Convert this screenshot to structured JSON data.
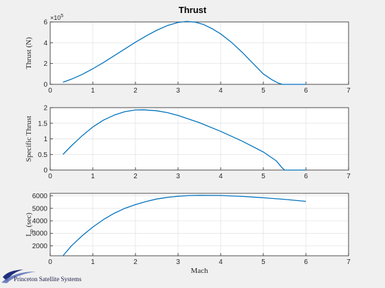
{
  "title": "Thrust",
  "logo": {
    "text": "Princeton Satellite Systems"
  },
  "chart_data": [
    {
      "type": "line",
      "xlabel": "",
      "ylabel": "Thrust (N)",
      "y_exponent": "×10",
      "y_exponent_power": "5",
      "xlim": [
        0,
        7
      ],
      "ylim": [
        0,
        6
      ],
      "xticks": [
        0,
        1,
        2,
        3,
        4,
        5,
        6,
        7
      ],
      "yticks": [
        0,
        2,
        4,
        6
      ],
      "grid": true,
      "color": "#0072bd",
      "x": [
        0.3,
        0.5,
        0.75,
        1.0,
        1.25,
        1.5,
        1.75,
        2.0,
        2.25,
        2.5,
        2.75,
        3.0,
        3.2,
        3.4,
        3.6,
        3.8,
        4.0,
        4.25,
        4.5,
        4.75,
        5.0,
        5.2,
        5.35,
        5.45,
        5.5,
        5.75,
        6.0
      ],
      "y": [
        0.2,
        0.5,
        0.95,
        1.5,
        2.1,
        2.75,
        3.4,
        4.05,
        4.65,
        5.2,
        5.65,
        5.95,
        6.05,
        5.98,
        5.75,
        5.35,
        4.85,
        4.05,
        3.1,
        2.05,
        1.0,
        0.45,
        0.12,
        0.0,
        0.0,
        0.0,
        0.0
      ]
    },
    {
      "type": "line",
      "xlabel": "",
      "ylabel": "Specific Thrust",
      "xlim": [
        0,
        7
      ],
      "ylim": [
        0,
        2
      ],
      "xticks": [
        0,
        1,
        2,
        3,
        4,
        5,
        6,
        7
      ],
      "yticks": [
        0,
        0.5,
        1,
        1.5,
        2
      ],
      "grid": true,
      "color": "#0072bd",
      "x": [
        0.3,
        0.5,
        0.75,
        1.0,
        1.25,
        1.5,
        1.75,
        2.0,
        2.2,
        2.5,
        2.75,
        3.0,
        3.5,
        4.0,
        4.5,
        5.0,
        5.3,
        5.45,
        5.5,
        6.0
      ],
      "y": [
        0.5,
        0.78,
        1.1,
        1.38,
        1.6,
        1.76,
        1.87,
        1.925,
        1.93,
        1.9,
        1.84,
        1.75,
        1.52,
        1.24,
        0.93,
        0.58,
        0.3,
        0.06,
        0.0,
        0.0
      ]
    },
    {
      "type": "line",
      "xlabel": "Mach",
      "ylabel": "I",
      "ylabel_sub": "sp",
      "ylabel_suffix": " (sec)",
      "xlim": [
        0,
        7
      ],
      "ylim": [
        1200,
        6200
      ],
      "xticks": [
        0,
        1,
        2,
        3,
        4,
        5,
        6,
        7
      ],
      "yticks": [
        2000,
        3000,
        4000,
        5000,
        6000
      ],
      "grid": true,
      "color": "#0072bd",
      "x": [
        0.3,
        0.5,
        0.75,
        1.0,
        1.25,
        1.5,
        1.75,
        2.0,
        2.25,
        2.5,
        2.75,
        3.0,
        3.25,
        3.5,
        4.0,
        4.5,
        5.0,
        5.5,
        6.0
      ],
      "y": [
        1200,
        2000,
        2800,
        3500,
        4100,
        4600,
        5000,
        5300,
        5550,
        5750,
        5880,
        5970,
        6020,
        6040,
        6030,
        5960,
        5850,
        5720,
        5560
      ]
    }
  ]
}
